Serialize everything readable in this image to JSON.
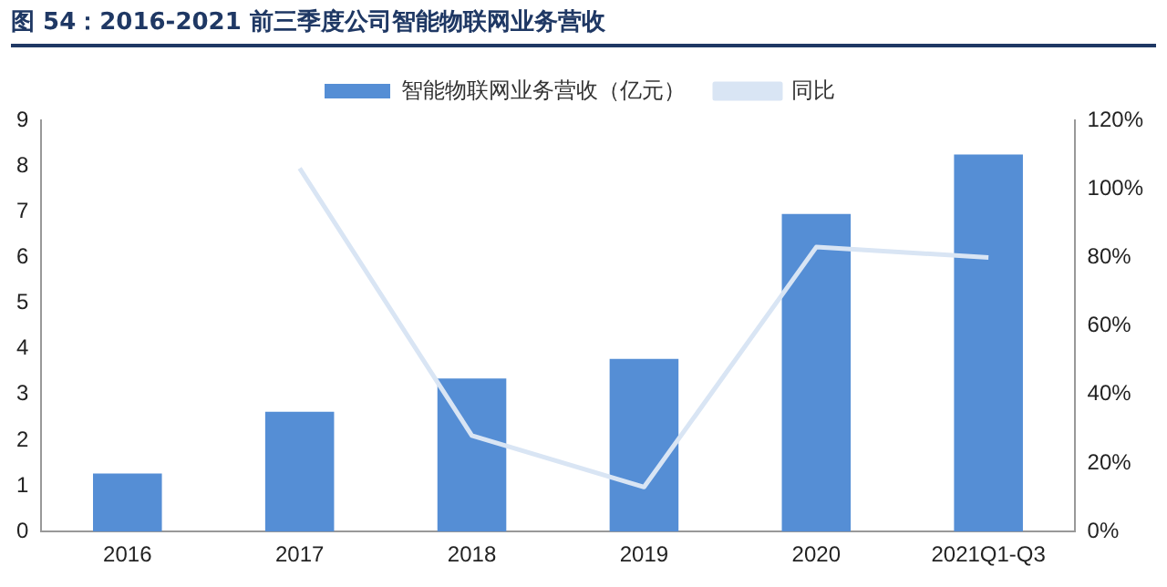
{
  "chart_data": {
    "type": "bar",
    "title": "图 54：2016-2021 前三季度公司智能物联网业务营收",
    "categories": [
      "2016",
      "2017",
      "2018",
      "2019",
      "2020",
      "2021Q1-Q3"
    ],
    "series": [
      {
        "name": "智能物联网业务营收（亿元）",
        "color": "#558ed5",
        "values": [
          1.27,
          2.62,
          3.35,
          3.78,
          6.95,
          8.25
        ]
      },
      {
        "name": "同比",
        "type": "line",
        "axis": "y2",
        "color": "#d9e5f4",
        "values": [
          null,
          106,
          28,
          13,
          83,
          80
        ]
      }
    ],
    "ylim": [
      0,
      9
    ],
    "yticks": [
      0,
      1,
      2,
      3,
      4,
      5,
      6,
      7,
      8,
      9
    ],
    "y2lim": [
      0,
      120
    ],
    "y2ticks": [
      {
        "value": 0,
        "label": "0%"
      },
      {
        "value": 20,
        "label": "20%"
      },
      {
        "value": 40,
        "label": "40%"
      },
      {
        "value": 60,
        "label": "60%"
      },
      {
        "value": 80,
        "label": "80%"
      },
      {
        "value": 100,
        "label": "100%"
      },
      {
        "value": 120,
        "label": "120%"
      }
    ],
    "grid": false,
    "legend": "top",
    "marker": "none",
    "line_style": "solid"
  }
}
